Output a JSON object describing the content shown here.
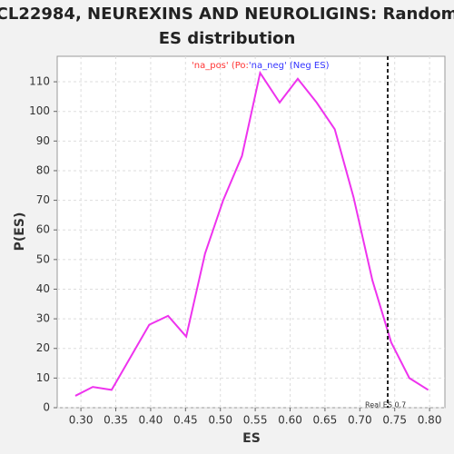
{
  "chart_data": {
    "type": "line",
    "title": [
      "CL22984, NEUREXINS AND NEUROLIGINS: Random",
      "ES distribution"
    ],
    "x_label": "ES",
    "y_label": "P(ES)",
    "legend": [
      {
        "name": "'na_pos' (Po:",
        "color": "#ff3333"
      },
      {
        "name": "'na_neg' (Neg ES)",
        "color": "#3333ff"
      }
    ],
    "series": [
      {
        "color": "#ee33ee",
        "x": [
          0.292,
          0.317,
          0.344,
          0.398,
          0.425,
          0.451,
          0.478,
          0.504,
          0.531,
          0.557,
          0.585,
          0.611,
          0.638,
          0.664,
          0.691,
          0.718,
          0.745,
          0.771,
          0.798
        ],
        "values": [
          4,
          7,
          6,
          28,
          31,
          24,
          52,
          70,
          85,
          113,
          103,
          111,
          103,
          94,
          71,
          43,
          22,
          10,
          6
        ]
      }
    ],
    "marker": {
      "x": 0.74,
      "label": "Real ES 0.7"
    },
    "xlim": [
      0.266,
      0.822
    ],
    "ylim": [
      0,
      118.6
    ],
    "xticks": [
      {
        "value": 0.3,
        "label": "0.30"
      },
      {
        "value": 0.35,
        "label": "0.35"
      },
      {
        "value": 0.4,
        "label": "0.40"
      },
      {
        "value": 0.45,
        "label": "0.45"
      },
      {
        "value": 0.5,
        "label": "0.50"
      },
      {
        "value": 0.55,
        "label": "0.55"
      },
      {
        "value": 0.6,
        "label": "0.60"
      },
      {
        "value": 0.65,
        "label": "0.65"
      },
      {
        "value": 0.7,
        "label": "0.70"
      },
      {
        "value": 0.75,
        "label": "0.75"
      },
      {
        "value": 0.8,
        "label": "0.80"
      }
    ],
    "yticks": [
      0,
      10,
      20,
      30,
      40,
      50,
      60,
      70,
      80,
      90,
      100,
      110
    ],
    "grid": true
  }
}
